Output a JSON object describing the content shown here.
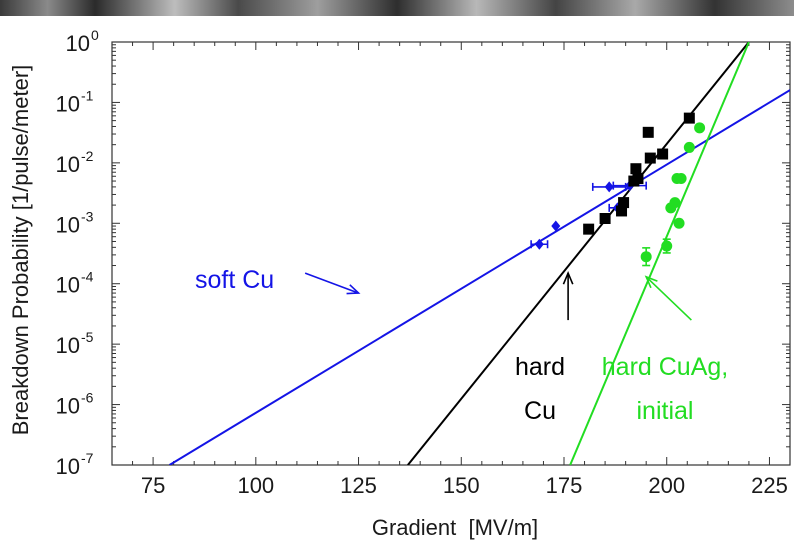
{
  "chart_data": {
    "type": "scatter",
    "title": "",
    "xlabel": "Gradient  [MV/m]",
    "ylabel": "Breakdown Probability [1/pulse/meter]",
    "xlim": [
      65,
      230
    ],
    "ylim": [
      1e-07,
      1
    ],
    "y_scale": "log",
    "x_ticks": [
      75,
      100,
      125,
      150,
      175,
      200,
      225
    ],
    "y_tick_exponents": [
      0,
      -1,
      -2,
      -3,
      -4,
      -5,
      -6,
      -7
    ],
    "y_tick_base": "10",
    "grid": false,
    "series": [
      {
        "color": "#1414e6",
        "marker": "diamond",
        "points": [
          {
            "x": 169,
            "y": 0.00045,
            "xerr": 2
          },
          {
            "x": 173,
            "y": 0.0009
          },
          {
            "x": 186,
            "y": 0.004,
            "xerr": 4
          },
          {
            "x": 188,
            "y": 0.0018,
            "xerr": 2
          },
          {
            "x": 191,
            "y": 0.0042,
            "xerr": 4
          }
        ],
        "fit_line": [
          [
            79,
            1e-07
          ],
          [
            230,
            0.16
          ]
        ]
      },
      {
        "color": "#000000",
        "marker": "square",
        "points": [
          {
            "x": 181,
            "y": 0.0008
          },
          {
            "x": 185,
            "y": 0.0012
          },
          {
            "x": 189,
            "y": 0.0016
          },
          {
            "x": 189.5,
            "y": 0.0022
          },
          {
            "x": 192,
            "y": 0.005
          },
          {
            "x": 192.5,
            "y": 0.008
          },
          {
            "x": 193,
            "y": 0.0055
          },
          {
            "x": 196,
            "y": 0.012
          },
          {
            "x": 195.5,
            "y": 0.032
          },
          {
            "x": 199,
            "y": 0.014
          },
          {
            "x": 205.5,
            "y": 0.055
          }
        ],
        "fit_line": [
          [
            137,
            1e-07
          ],
          [
            220,
            1
          ]
        ]
      },
      {
        "color": "#22dd22",
        "marker": "circle",
        "points": [
          {
            "x": 195,
            "y": 0.00028,
            "yerr_factor": 1.4
          },
          {
            "x": 200,
            "y": 0.00042,
            "yerr_factor": 1.3
          },
          {
            "x": 201,
            "y": 0.0018
          },
          {
            "x": 202,
            "y": 0.0022
          },
          {
            "x": 203,
            "y": 0.001
          },
          {
            "x": 202.5,
            "y": 0.0055
          },
          {
            "x": 203.5,
            "y": 0.0055
          },
          {
            "x": 205.5,
            "y": 0.018
          },
          {
            "x": 208,
            "y": 0.038
          }
        ],
        "fit_line": [
          [
            176.5,
            1e-07
          ],
          [
            220,
            1
          ]
        ]
      }
    ],
    "annotations": [
      {
        "color": "#1414e6",
        "lines": [
          "soft Cu"
        ],
        "arrow_to": [
          125,
          7e-05
        ],
        "from": [
          112,
          0.00015
        ]
      },
      {
        "color": "#000000",
        "lines": [
          "hard",
          "Cu"
        ],
        "arrow_to": [
          176,
          0.00015
        ],
        "from": [
          176,
          2.5e-05
        ]
      },
      {
        "color": "#22dd22",
        "lines": [
          "hard CuAg,",
          "initial"
        ],
        "arrow_to": [
          195,
          0.00013
        ],
        "from": [
          206,
          2.5e-05
        ]
      }
    ]
  }
}
